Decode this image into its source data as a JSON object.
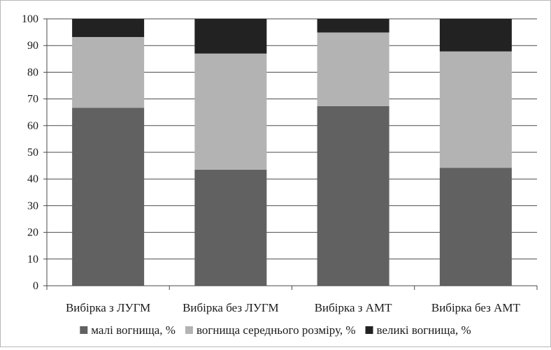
{
  "chart_data": {
    "type": "bar",
    "stacked": true,
    "categories": [
      "Вибірка з ЛУГМ",
      "Вибірка без ЛУГМ",
      "Вибірка з АМТ",
      "Вибірка без АМТ"
    ],
    "series": [
      {
        "name": "малі вогнища, %",
        "values": [
          66.7,
          43.5,
          67.3,
          44.2
        ],
        "color": "#616161"
      },
      {
        "name": "вогнища середнього розміру, %",
        "values": [
          26.5,
          43.5,
          27.6,
          43.6
        ],
        "color": "#b3b3b3"
      },
      {
        "name": "великі вогнища, %",
        "values": [
          6.8,
          13.0,
          5.1,
          12.2
        ],
        "color": "#222222"
      }
    ],
    "ylim": [
      0,
      100
    ],
    "yticks": [
      "0",
      "10",
      "20",
      "30",
      "40",
      "50",
      "60",
      "70",
      "80",
      "90",
      "100"
    ],
    "grid": true,
    "legend_position": "bottom",
    "title": "",
    "xlabel": "",
    "ylabel": ""
  }
}
